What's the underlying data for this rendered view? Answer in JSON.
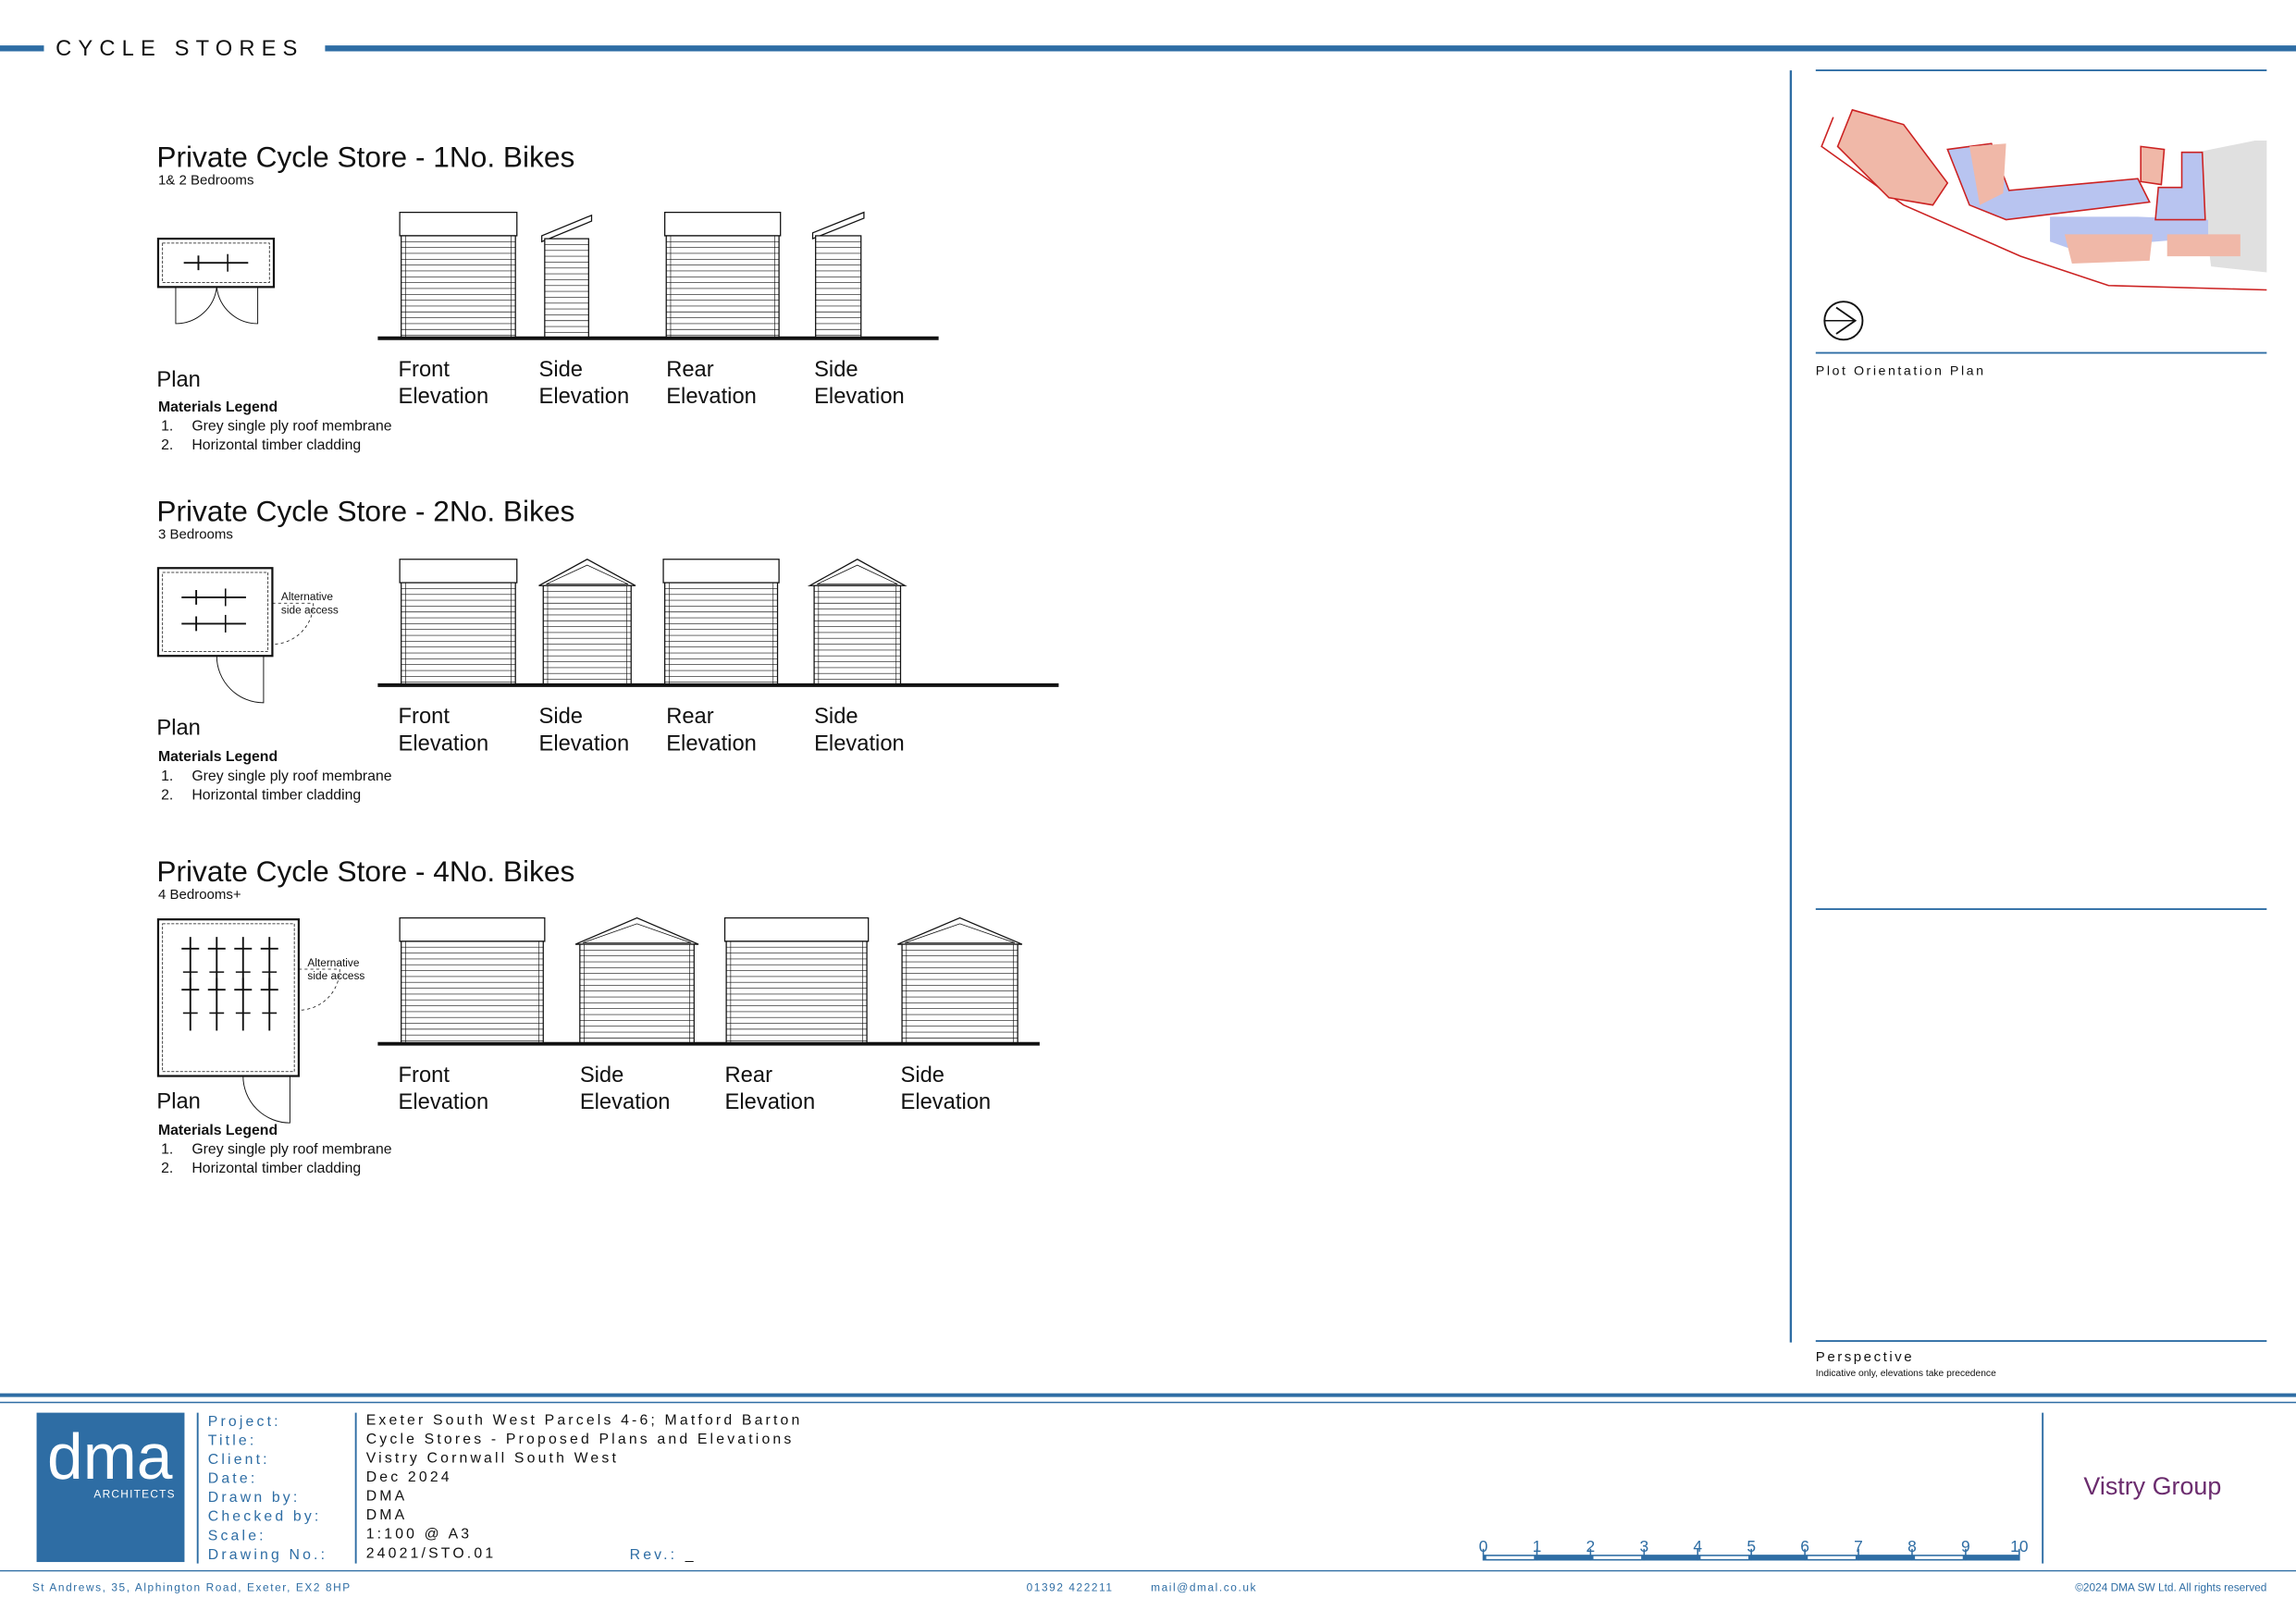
{
  "header": {
    "title": "CYCLE STORES"
  },
  "sections": [
    {
      "title": "Private Cycle Store - 1No. Bikes",
      "subtitle": "1& 2 Bedrooms",
      "plan_label": "Plan",
      "elevations": [
        [
          "Front",
          "Elevation"
        ],
        [
          "Side",
          "Elevation"
        ],
        [
          "Rear",
          "Elevation"
        ],
        [
          "Side",
          "Elevation"
        ]
      ],
      "legend_title": "Materials Legend",
      "legend": [
        [
          "1.",
          "Grey single ply roof membrane"
        ],
        [
          "2.",
          "Horizontal timber cladding"
        ]
      ]
    },
    {
      "title": "Private Cycle Store - 2No. Bikes",
      "subtitle": "3 Bedrooms",
      "plan_label": "Plan",
      "annotation": [
        "Alternative",
        "side access"
      ],
      "elevations": [
        [
          "Front",
          "Elevation"
        ],
        [
          "Side",
          "Elevation"
        ],
        [
          "Rear",
          "Elevation"
        ],
        [
          "Side",
          "Elevation"
        ]
      ],
      "legend_title": "Materials Legend",
      "legend": [
        [
          "1.",
          "Grey single ply roof membrane"
        ],
        [
          "2.",
          "Horizontal timber cladding"
        ]
      ]
    },
    {
      "title": "Private Cycle Store - 4No. Bikes",
      "subtitle": "4 Bedrooms+",
      "plan_label": "Plan",
      "annotation": [
        "Alternative",
        "side access"
      ],
      "elevations": [
        [
          "Front",
          "Elevation"
        ],
        [
          "Side",
          "Elevation"
        ],
        [
          "Rear",
          "Elevation"
        ],
        [
          "Side",
          "Elevation"
        ]
      ],
      "legend_title": "Materials Legend",
      "legend": [
        [
          "1.",
          "Grey single ply roof membrane"
        ],
        [
          "2.",
          "Horizontal timber cladding"
        ]
      ]
    }
  ],
  "side_panel": {
    "orientation_label": "Plot Orientation Plan",
    "perspective_label": "Perspective",
    "perspective_note": "Indicative only, elevations take precedence"
  },
  "title_block": {
    "logo": "dma",
    "logo_sub": "ARCHITECTS",
    "fields": [
      [
        "Project:",
        "Exeter South West Parcels 4-6; Matford Barton"
      ],
      [
        "Title:",
        "Cycle Stores - Proposed Plans and Elevations"
      ],
      [
        "Client:",
        "Vistry Cornwall South West"
      ],
      [
        "Date:",
        "Dec 2024"
      ],
      [
        "Drawn by:",
        "DMA"
      ],
      [
        "Checked by:",
        "DMA"
      ],
      [
        "Scale:",
        "1:100 @ A3"
      ],
      [
        "Drawing No.:",
        "24021/STO.01"
      ]
    ],
    "rev_label": "Rev.:",
    "rev": "_",
    "scale_bar": [
      0,
      1,
      2,
      3,
      4,
      5,
      6,
      7,
      8,
      9,
      10
    ],
    "client_logo": "Vistry Group"
  },
  "footer": {
    "address": "St Andrews, 35, Alphington Road, Exeter, EX2 8HP",
    "phone": "01392 422211",
    "email": "mail@dmal.co.uk",
    "copyright": "©2024 DMA SW Ltd. All rights reserved"
  }
}
